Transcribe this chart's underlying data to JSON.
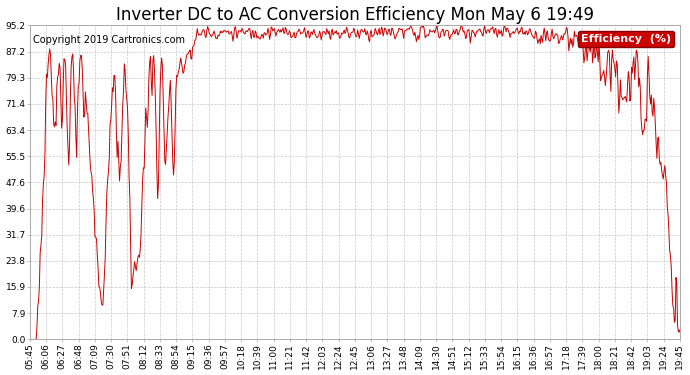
{
  "title": "Inverter DC to AC Conversion Efficiency Mon May 6 19:49",
  "copyright": "Copyright 2019 Cartronics.com",
  "legend_label": "Efficiency  (%)",
  "legend_bg": "#cc0000",
  "legend_text_color": "#ffffff",
  "line_color": "#cc0000",
  "bg_color": "#ffffff",
  "plot_bg": "#ffffff",
  "grid_color": "#c8c8c8",
  "ylim": [
    0.0,
    95.2
  ],
  "yticks": [
    0.0,
    7.9,
    15.9,
    23.8,
    31.7,
    39.6,
    47.6,
    55.5,
    63.4,
    71.4,
    79.3,
    87.2,
    95.2
  ],
  "xtick_labels": [
    "05:45",
    "06:06",
    "06:27",
    "06:48",
    "07:09",
    "07:30",
    "07:51",
    "08:12",
    "08:33",
    "08:54",
    "09:15",
    "09:36",
    "09:57",
    "10:18",
    "10:39",
    "11:00",
    "11:21",
    "11:42",
    "12:03",
    "12:24",
    "12:45",
    "13:06",
    "13:27",
    "13:48",
    "14:09",
    "14:30",
    "14:51",
    "15:12",
    "15:33",
    "15:54",
    "16:15",
    "16:36",
    "16:57",
    "17:18",
    "17:39",
    "18:00",
    "18:21",
    "18:42",
    "19:03",
    "19:24",
    "19:45"
  ],
  "title_fontsize": 12,
  "copyright_fontsize": 7,
  "tick_fontsize": 6.5,
  "legend_fontsize": 8
}
